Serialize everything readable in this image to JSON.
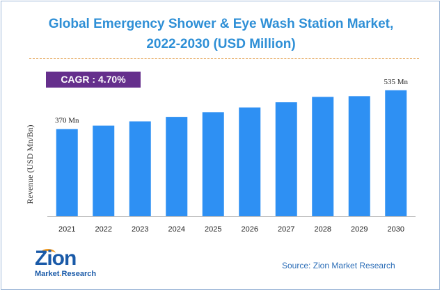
{
  "title_lines": [
    "Global Emergency Shower & Eye Wash Station Market,",
    "2022-2030 (USD Million)"
  ],
  "cagr_label": "CAGR : 4.70%",
  "source": "Source: Zion Market Research",
  "logo": {
    "main": "Zion",
    "sub_left": "Market",
    "sub_dot": ".",
    "sub_right": "Research"
  },
  "colors": {
    "bar": "#2e90f3",
    "title": "#2e8fd6",
    "cagr_bg": "#652f8c",
    "divider": "#e0953a"
  },
  "chart_data": {
    "type": "bar",
    "categories": [
      "2021",
      "2022",
      "2023",
      "2024",
      "2025",
      "2026",
      "2027",
      "2028",
      "2029",
      "2030"
    ],
    "values": [
      370,
      385,
      403,
      422,
      442,
      462,
      484,
      507,
      510,
      535
    ],
    "data_labels": [
      {
        "index": 0,
        "text": "370 Mn"
      },
      {
        "index": 9,
        "text": "535 Mn"
      }
    ],
    "title": "Global Emergency Shower & Eye Wash Station Market, 2022-2030 (USD Million)",
    "xlabel": "",
    "ylabel": "Revenue (USD Mn/Bn)",
    "ylim": [
      0,
      570
    ],
    "grid": false,
    "legend": "none"
  }
}
